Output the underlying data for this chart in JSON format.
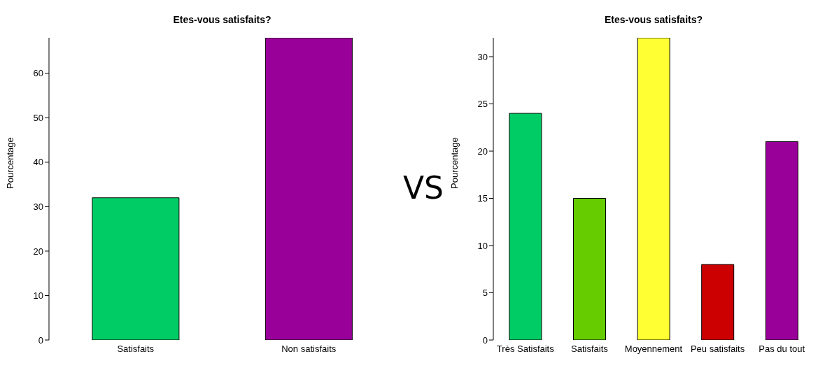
{
  "chart_data": [
    {
      "type": "bar",
      "title": "Etes-vous satisfaits?",
      "ylabel": "Pourcentage",
      "categories": [
        "Satisfaits",
        "Non satisfaits"
      ],
      "values": [
        32,
        68
      ],
      "colors": [
        "#00cc66",
        "#990099"
      ],
      "ylim": [
        0,
        68
      ],
      "yticks": [
        0,
        10,
        20,
        30,
        40,
        50,
        60
      ]
    },
    {
      "type": "other",
      "annotations": [
        "VS"
      ]
    },
    {
      "type": "bar",
      "title": "Etes-vous satisfaits?",
      "ylabel": "Pourcentage",
      "categories": [
        "Très Satisfaits",
        "Satisfaits",
        "Moyennement",
        "Peu satisfaits",
        "Pas du tout"
      ],
      "values": [
        24,
        15,
        32,
        8,
        21
      ],
      "colors": [
        "#00cc66",
        "#66cc00",
        "#ffff33",
        "#cc0000",
        "#990099"
      ],
      "ylim": [
        0,
        32
      ],
      "yticks": [
        0,
        5,
        10,
        15,
        20,
        25,
        30
      ]
    }
  ]
}
